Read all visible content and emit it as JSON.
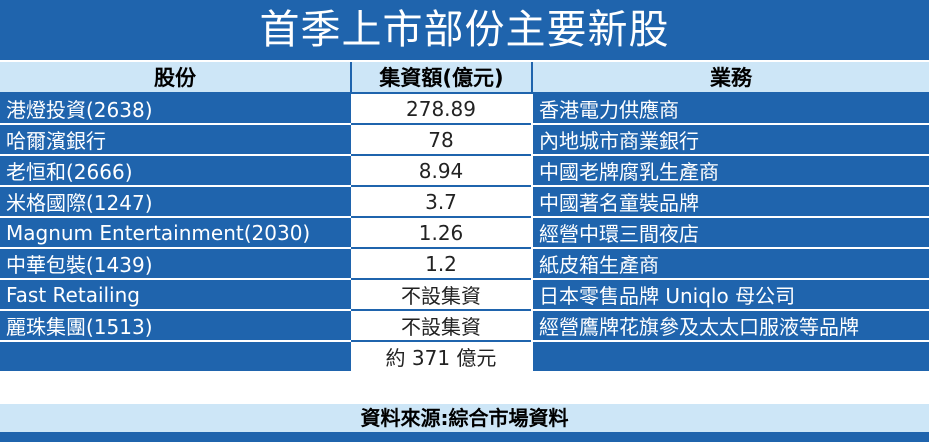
{
  "title": "首季上市部份主要新股",
  "headers": {
    "stock": "股份",
    "amount": "集資額(億元)",
    "business": "業務"
  },
  "rows": [
    {
      "stock": "港燈投資(2638)",
      "amount": "278.89",
      "business": "香港電力供應商"
    },
    {
      "stock": "哈爾濱銀行",
      "amount": "78",
      "business": "內地城市商業銀行"
    },
    {
      "stock": "老恒和(2666)",
      "amount": "8.94",
      "business": "中國老牌腐乳生產商"
    },
    {
      "stock": "米格國際(1247)",
      "amount": "3.7",
      "business": "中國著名童裝品牌"
    },
    {
      "stock": "Magnum Entertainment(2030)",
      "amount": "1.26",
      "business": "經營中環三間夜店"
    },
    {
      "stock": "中華包裝(1439)",
      "amount": "1.2",
      "business": "紙皮箱生產商"
    },
    {
      "stock": "Fast Retailing",
      "amount": "不設集資",
      "business": "日本零售品牌 Uniqlo 母公司"
    },
    {
      "stock": "麗珠集團(1513)",
      "amount": "不設集資",
      "business": "經營鷹牌花旗參及太太口服液等品牌"
    }
  ],
  "total": {
    "stock": "",
    "amount": "約 371 億元",
    "business": ""
  },
  "source": "資料來源:綜合市場資料",
  "colors": {
    "primary_blue": "#1f64ad",
    "header_light_blue": "#cde6f7",
    "white": "#ffffff"
  }
}
